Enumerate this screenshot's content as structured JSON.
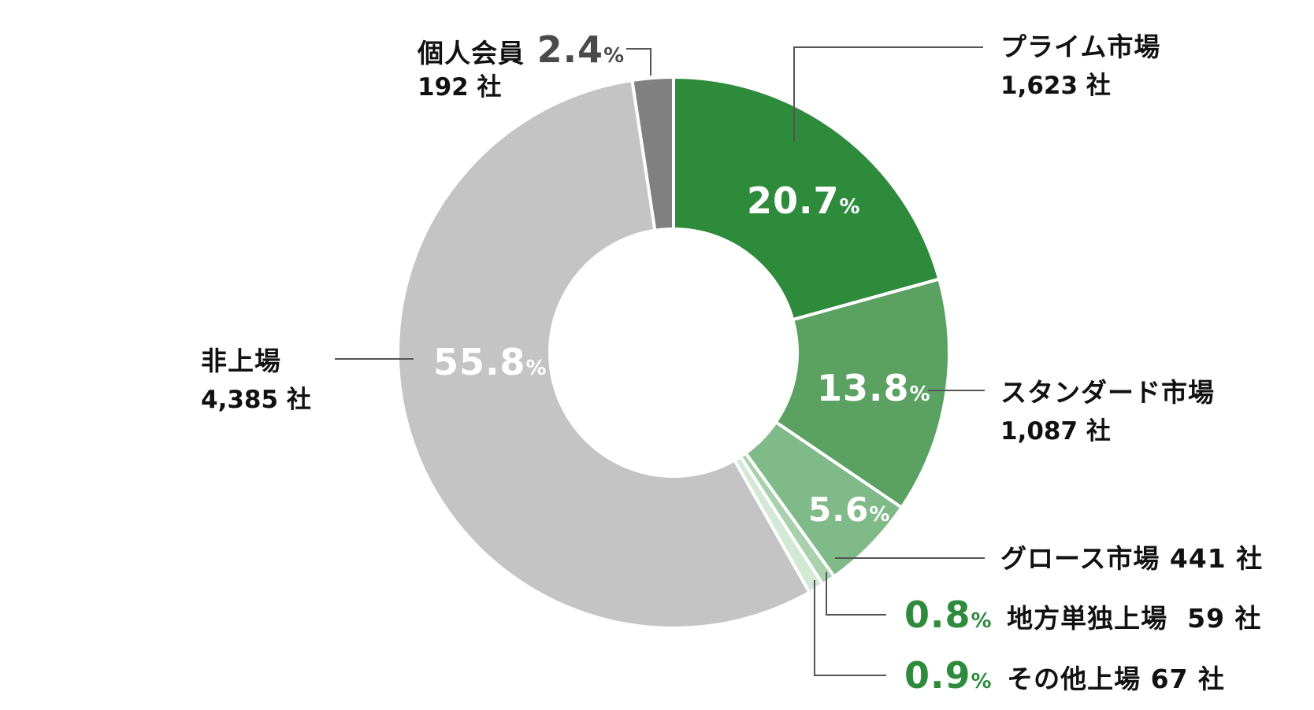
{
  "chart_data": {
    "type": "pie",
    "variant": "donut",
    "title": "",
    "start_angle_deg": 0,
    "direction": "clockwise",
    "categories": [
      "プライム市場",
      "スタンダード市場",
      "グロース市場",
      "地方単独上場",
      "その他上場",
      "非上場",
      "個人会員"
    ],
    "values": [
      20.7,
      13.8,
      5.6,
      0.8,
      0.9,
      55.8,
      2.4
    ],
    "counts": [
      1623,
      1087,
      441,
      59,
      67,
      4385,
      192
    ],
    "unit": "%",
    "count_unit": "社",
    "colors": [
      "#2e8b3c",
      "#5aa162",
      "#80ba88",
      "#a9d1ae",
      "#d4e8d6",
      "#c4c4c4",
      "#808080"
    ],
    "legend": "none (callout labels)"
  },
  "slices": [
    {
      "name": "プライム市場",
      "count_label": "1,623 社",
      "pct": "20.7",
      "pct_sym": "%"
    },
    {
      "name": "スタンダード市場",
      "count_label": "1,087 社",
      "pct": "13.8",
      "pct_sym": "%"
    },
    {
      "name": "グロース市場 441 社",
      "pct": "5.6",
      "pct_sym": "%"
    },
    {
      "name": "地方単独上場  59 社",
      "pct": "0.8",
      "pct_sym": "%"
    },
    {
      "name": "その他上場 67 社",
      "pct": "0.9",
      "pct_sym": "%"
    },
    {
      "name": "非上場",
      "count_label": "4,385 社",
      "pct": "55.8",
      "pct_sym": "%"
    },
    {
      "name": "個人会員",
      "count_label": "192 社",
      "pct": "2.4",
      "pct_sym": "%"
    }
  ]
}
